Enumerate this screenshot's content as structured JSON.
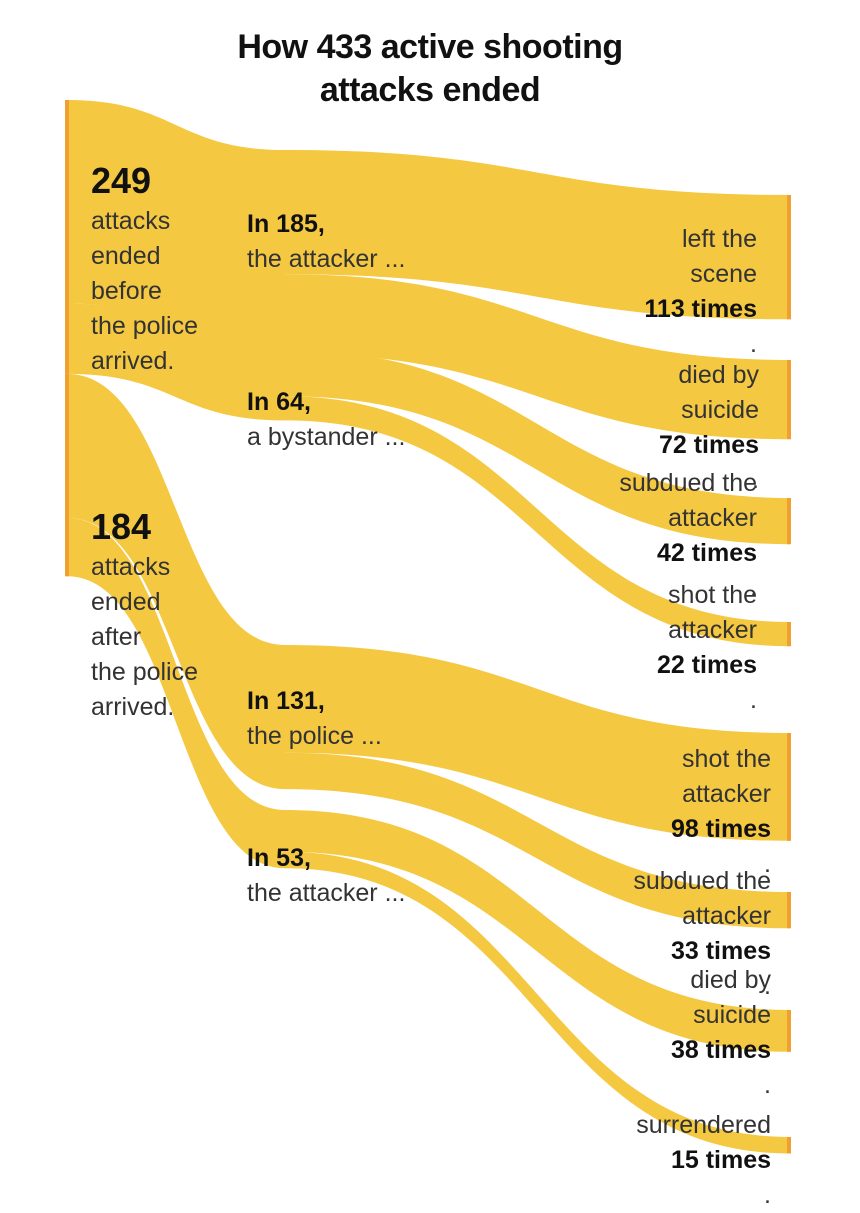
{
  "title_line1": "How 433 active shooting",
  "title_line2": "attacks ended",
  "colors": {
    "flow": "#f5c842",
    "edge": "#f0a030"
  },
  "stage1": [
    {
      "value": "249",
      "text": [
        "attacks",
        "ended",
        "before",
        "the police",
        "arrived."
      ]
    },
    {
      "value": "184",
      "text": [
        "attacks",
        "ended",
        "after",
        "the police",
        "arrived."
      ]
    }
  ],
  "stage2": [
    {
      "bold": "In 185,",
      "text": "the attacker ..."
    },
    {
      "bold": "In 64,",
      "text": "a bystander ..."
    },
    {
      "bold": "In 131,",
      "text": "the police ..."
    },
    {
      "bold": "In 53,",
      "text": "the attacker ..."
    }
  ],
  "outcomes": [
    {
      "line1": "left the",
      "pre": "scene ",
      "bold": "113 times",
      "post": "."
    },
    {
      "line1": "died by",
      "pre": "suicide ",
      "bold": "72 times",
      "post": "."
    },
    {
      "line1": "subdued the",
      "pre": "attacker ",
      "bold": "42 times",
      "post": "."
    },
    {
      "line1": "shot the",
      "pre": "attacker ",
      "bold": "22 times",
      "post": "."
    },
    {
      "line1": "shot the",
      "pre": "attacker ",
      "bold": "98 times",
      "post": "."
    },
    {
      "line1": "subdued the",
      "pre": "attacker ",
      "bold": "33 times",
      "post": "."
    },
    {
      "line1": "died by",
      "pre": "suicide ",
      "bold": "38 times",
      "post": "."
    },
    {
      "line1": "surrendered",
      "pre": "",
      "bold": "15 times",
      "post": "."
    }
  ],
  "chart_data": {
    "type": "sankey",
    "title": "How 433 active shooting attacks ended",
    "total": 433,
    "links": [
      {
        "source": "before the police arrived",
        "target": "the attacker (before police)",
        "value": 185
      },
      {
        "source": "before the police arrived",
        "target": "a bystander",
        "value": 64
      },
      {
        "source": "after the police arrived",
        "target": "the police",
        "value": 131
      },
      {
        "source": "after the police arrived",
        "target": "the attacker (after police)",
        "value": 53
      },
      {
        "source": "the attacker (before police)",
        "target": "left the scene",
        "value": 113
      },
      {
        "source": "the attacker (before police)",
        "target": "died by suicide",
        "value": 72
      },
      {
        "source": "a bystander",
        "target": "subdued the attacker",
        "value": 42
      },
      {
        "source": "a bystander",
        "target": "shot the attacker",
        "value": 22
      },
      {
        "source": "the police",
        "target": "shot the attacker",
        "value": 98
      },
      {
        "source": "the police",
        "target": "subdued the attacker",
        "value": 33
      },
      {
        "source": "the attacker (after police)",
        "target": "died by suicide",
        "value": 38
      },
      {
        "source": "the attacker (after police)",
        "target": "surrendered",
        "value": 15
      }
    ]
  }
}
